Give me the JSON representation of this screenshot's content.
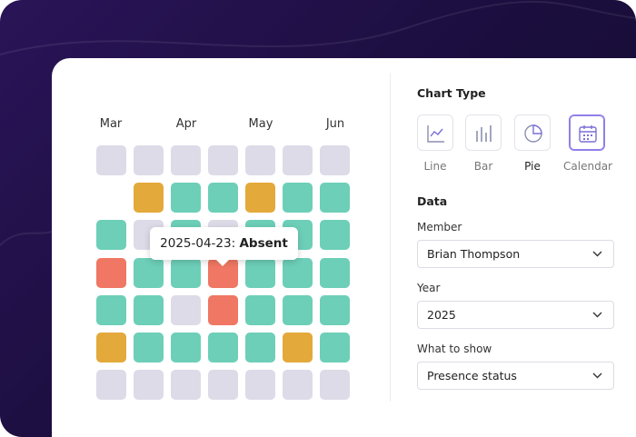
{
  "calendar": {
    "months": [
      "Mar",
      "Apr",
      "May",
      "Jun"
    ],
    "cells": [
      [
        "#dddbe8",
        "#dddbe8",
        "#dddbe8",
        "#dddbe8",
        "#dddbe8",
        "#dddbe8",
        "#dddbe8"
      ],
      [
        null,
        "#e3a93a",
        "#6dcfb8",
        "#6dcfb8",
        "#e3a93a",
        "#6dcfb8",
        "#6dcfb8"
      ],
      [
        "#6dcfb8",
        "#dddbe8",
        "#6dcfb8",
        "#dddbe8",
        "#6dcfb8",
        "#6dcfb8",
        "#6dcfb8"
      ],
      [
        "#ef7763",
        "#6dcfb8",
        "#6dcfb8",
        "#ef7763",
        "#6dcfb8",
        "#6dcfb8",
        "#6dcfb8"
      ],
      [
        "#6dcfb8",
        "#6dcfb8",
        "#dddbe8",
        "#ef7763",
        "#6dcfb8",
        "#6dcfb8",
        "#6dcfb8"
      ],
      [
        "#e3a93a",
        "#6dcfb8",
        "#6dcfb8",
        "#6dcfb8",
        "#6dcfb8",
        "#e3a93a",
        "#6dcfb8"
      ],
      [
        "#dddbe8",
        "#dddbe8",
        "#dddbe8",
        "#dddbe8",
        "#dddbe8",
        "#dddbe8",
        "#dddbe8"
      ]
    ],
    "tooltip": {
      "date": "2025-04-23:",
      "status": "Absent"
    }
  },
  "panel": {
    "chart_type_title": "Chart Type",
    "chart_types": [
      "Line",
      "Bar",
      "Pie",
      "Calendar"
    ],
    "data_title": "Data",
    "fields": [
      {
        "label": "Member",
        "value": "Brian Thompson"
      },
      {
        "label": "Year",
        "value": "2025"
      },
      {
        "label": "What to show",
        "value": "Presence status"
      }
    ]
  }
}
